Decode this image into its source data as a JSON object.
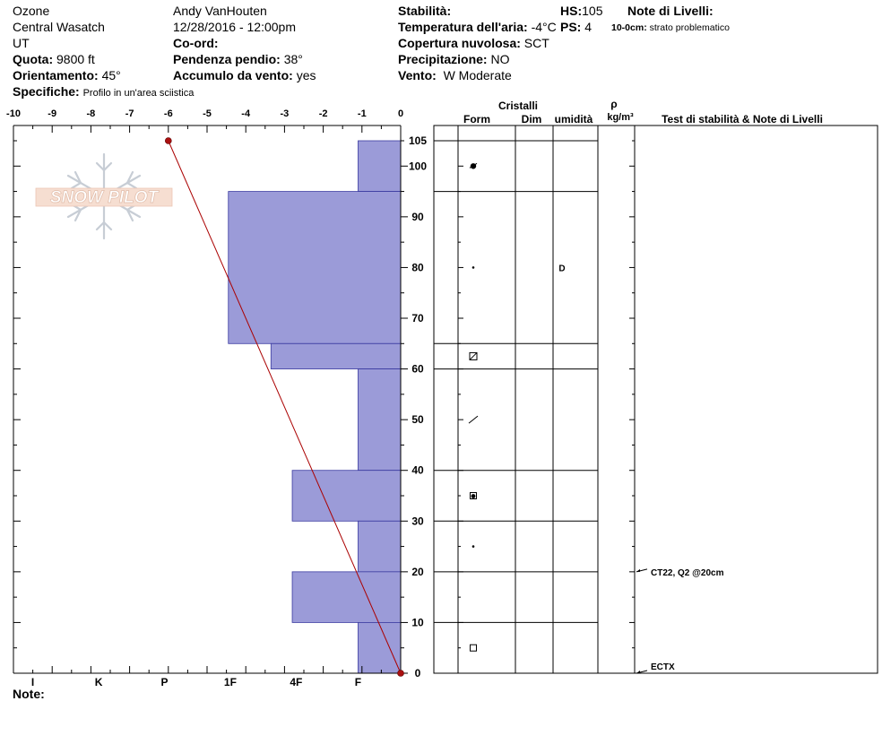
{
  "header": {
    "location": "Ozone",
    "range": "Central Wasatch",
    "state": "UT",
    "elevation_label": "Quota:",
    "elevation_value": "9800 ft",
    "aspect_label": "Orientamento:",
    "aspect_value": "45°",
    "specifics_label": "Specifiche:",
    "specifics_value": "Profilo in un'area sciistica",
    "observer": "Andy VanHouten",
    "datetime": "12/28/2016 - 12:00pm",
    "coord_label": "Co-ord:",
    "slope_label": "Pendenza pendio:",
    "slope_value": "38°",
    "wind_loading_label": "Accumulo da vento:",
    "wind_loading_value": "yes",
    "stability_label": "Stabilità:",
    "air_temp_label": "Temperatura dell'aria:",
    "air_temp_value": "-4°C",
    "sky_label": "Copertura nuvolosa:",
    "sky_value": "SCT",
    "precip_label": "Precipitazione:",
    "precip_value": "NO",
    "wind_label": "Vento:",
    "wind_value": "W Moderate",
    "hs_label": "HS:",
    "hs_value": "105",
    "ps_label": "PS:",
    "ps_value": "4",
    "layer_notes_label": "Note di Livelli:",
    "layer_note_depth": "10-0cm:",
    "layer_note_text": "strato problematico",
    "notes_label": "Note:"
  },
  "logo_text": "SNOW PILOT",
  "table_headers": {
    "crystals": "Cristalli",
    "form": "Form",
    "dim": "Dim",
    "moisture": "umidità",
    "rho": "ρ",
    "density": "kg/m³",
    "tests": "Test di stabilità & Note di Livelli"
  },
  "colors": {
    "hardness_fill": "#9b9bd8",
    "hardness_stroke": "#3a3aa0",
    "temp_line": "#aa0000",
    "temp_point": "#aa1010"
  },
  "chart_data": {
    "type": "snow-profile",
    "height_axis": {
      "min": 0,
      "max": 105,
      "ticks": [
        0,
        10,
        20,
        30,
        40,
        50,
        60,
        70,
        80,
        90,
        100,
        105
      ],
      "unit": "cm"
    },
    "temp_axis": {
      "min": -10,
      "max": 0,
      "ticks": [
        -10,
        -9,
        -8,
        -7,
        -6,
        -5,
        -4,
        -3,
        -2,
        -1,
        0
      ]
    },
    "hardness_axis": {
      "ticks": [
        "I",
        "K",
        "P",
        "1F",
        "4F",
        "F"
      ],
      "positions": [
        -9.5,
        -7.8,
        -6.1,
        -4.4,
        -2.7,
        -1.1
      ]
    },
    "hardness_layers": [
      {
        "bottom": 95,
        "top": 105,
        "hardness_temp_equiv": -1.1
      },
      {
        "bottom": 65,
        "top": 95,
        "hardness_temp_equiv": -4.45
      },
      {
        "bottom": 60,
        "top": 65,
        "hardness_temp_equiv": -3.35
      },
      {
        "bottom": 40,
        "top": 60,
        "hardness_temp_equiv": -1.1
      },
      {
        "bottom": 30,
        "top": 40,
        "hardness_temp_equiv": -2.8
      },
      {
        "bottom": 20,
        "top": 30,
        "hardness_temp_equiv": -1.1
      },
      {
        "bottom": 10,
        "top": 20,
        "hardness_temp_equiv": -2.8
      },
      {
        "bottom": 0,
        "top": 10,
        "hardness_temp_equiv": -1.1
      }
    ],
    "temperature_profile": [
      {
        "height": 105,
        "temp": -6
      },
      {
        "height": 0,
        "temp": 0
      }
    ],
    "layer_boundaries": [
      105,
      95,
      65,
      60,
      40,
      30,
      20,
      10,
      0
    ],
    "crystal_forms": [
      {
        "height": 100,
        "symbol": "decomposing-fragments"
      },
      {
        "height": 80,
        "symbol": "rounded-small-dot"
      },
      {
        "height": 62.5,
        "symbol": "faceted-crust"
      },
      {
        "height": 50,
        "symbol": "melt-freeze-slash"
      },
      {
        "height": 35,
        "symbol": "mixed-form"
      },
      {
        "height": 25,
        "symbol": "rounded-small-dot"
      },
      {
        "height": 5,
        "symbol": "faceted-square"
      }
    ],
    "moisture": [
      {
        "height": 80,
        "value": "D"
      }
    ],
    "stability_tests": [
      {
        "height": 20,
        "label": "CT22, Q2 @20cm"
      },
      {
        "height": 0,
        "label": "ECTX"
      }
    ]
  }
}
